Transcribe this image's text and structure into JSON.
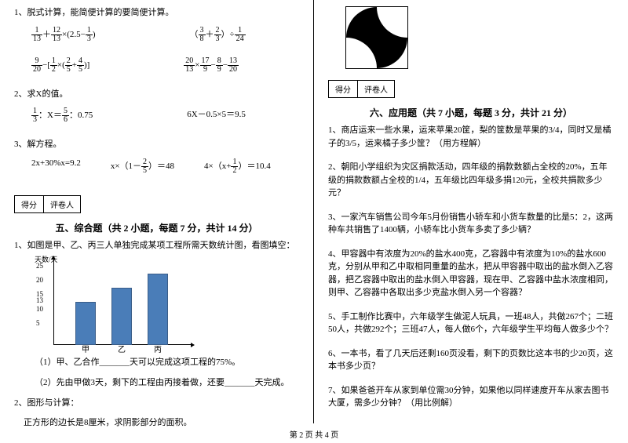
{
  "left": {
    "q1_label": "1、脱式计算，能简便计算的要简便计算。",
    "expr1a_p1": "1",
    "expr1a_p2": "13",
    "expr1a_p3": "12",
    "expr1a_p4": "13",
    "expr1a_p5": "2.5−",
    "expr1a_p6": "1",
    "expr1a_p7": "3",
    "expr1b_p1": "3",
    "expr1b_p2": "8",
    "expr1b_p3": "2",
    "expr1b_p4": "3",
    "expr1b_p5": "1",
    "expr1b_p6": "24",
    "expr2a_p1": "9",
    "expr2a_p2": "20",
    "expr2a_p3": "1",
    "expr2a_p4": "2",
    "expr2a_p5": "2",
    "expr2a_p6": "5",
    "expr2a_p7": "4",
    "expr2a_p8": "5",
    "expr2b_p1": "20",
    "expr2b_p2": "13",
    "expr2b_p3": "17",
    "expr2b_p4": "9",
    "expr2b_p5": "8",
    "expr2b_p6": "9",
    "expr2b_p7": "13",
    "expr2b_p8": "20",
    "q2_label": "2、求X的值。",
    "expr3a_p1": "1",
    "expr3a_p2": "3",
    "expr3a_mid": "：X＝",
    "expr3a_p3": "5",
    "expr3a_p4": "6",
    "expr3a_end": "：0.75",
    "expr3b": "6X－0.5×5＝9.5",
    "q3_label": "3、解方程。",
    "expr4a": "2x+30%x=9.2",
    "expr4b_pre": "x×（1－",
    "expr4b_p1": "2",
    "expr4b_p2": "5",
    "expr4b_post": "）＝48",
    "expr4c_pre": "4×（x+",
    "expr4c_p1": "1",
    "expr4c_p2": "2",
    "expr4c_post": "）＝10.4",
    "score_label1": "得分",
    "score_label2": "评卷人",
    "sect5": "五、综合题（共 2 小题，每题 7 分，共计 14 分）",
    "q5_1": "1、如图是甲、乙、丙三人单独完成某项工程所需天数统计图，看图填空：",
    "chart": {
      "y_title": "天数/天",
      "y_ticks": [
        "5",
        "10",
        "13",
        "15",
        "20",
        "25"
      ],
      "y_positions": [
        0.17,
        0.33,
        0.43,
        0.5,
        0.67,
        0.83
      ],
      "bars": [
        {
          "label": "甲",
          "value": 15,
          "x": 52
        },
        {
          "label": "乙",
          "value": 20,
          "x": 98
        },
        {
          "label": "丙",
          "value": 25,
          "x": 144
        }
      ],
      "ymax": 30,
      "bar_color": "#4a7db8"
    },
    "q5_1_sub1": "（1）甲、乙合作_______天可以完成这项工程的75%。",
    "q5_1_sub2": "（2）先由甲做3天，剩下的工程由丙接着做，还要_______天完成。",
    "q5_2": "2、图形与计算：",
    "q5_2_sub": "正方形的边长是8厘米，求阴影部分的面积。"
  },
  "right": {
    "score_label1": "得分",
    "score_label2": "评卷人",
    "sect6": "六、应用题（共 7 小题，每题 3 分，共计 21 分）",
    "q1": "1、商店运来一些水果，运来苹果20筐，梨的筐数是苹果的3/4，同时又是橘子的3/5，运来橘子多少筐？（用方程解）",
    "q2": "2、朝阳小学组织为灾区捐款活动，四年级的捐款数额占全校的20%，五年级的捐款数额占全校的1/4，五年级比四年级多捐120元，全校共捐款多少元？",
    "q3": "3、一家汽车销售公司今年5月份销售小轿车和小货车数量的比是5：2，这两种车共销售了1400辆，小轿车比小货车多卖了多少辆？",
    "q4": "4、甲容器中有浓度为20%的盐水400克，乙容器中有浓度为10%的盐水600克，分别从甲和乙中取相同重量的盐水，把从甲容器中取出的盐水倒入乙容器，把乙容器中取出的盐水倒入甲容器，现在甲、乙容器中盐水浓度相同，则甲、乙容器中各取出多少克盐水倒入另一个容器？",
    "q5": "5、手工制作比赛中，六年级学生做泥人玩具，一班48人，共做267个；二班50人，共做292个；三班47人，每人做6个，六年级学生平均每人做多少个？",
    "q6": "6、一本书，看了几天后还剩160页没看，剩下的页数比这本书的少20页，这本书多少页？",
    "q7": "7、如果爸爸开车从家到单位需30分钟，如果他以同样速度开车从家去图书大厦，需多少分钟？（用比例解）"
  },
  "footer": "第 2 页 共 4 页"
}
